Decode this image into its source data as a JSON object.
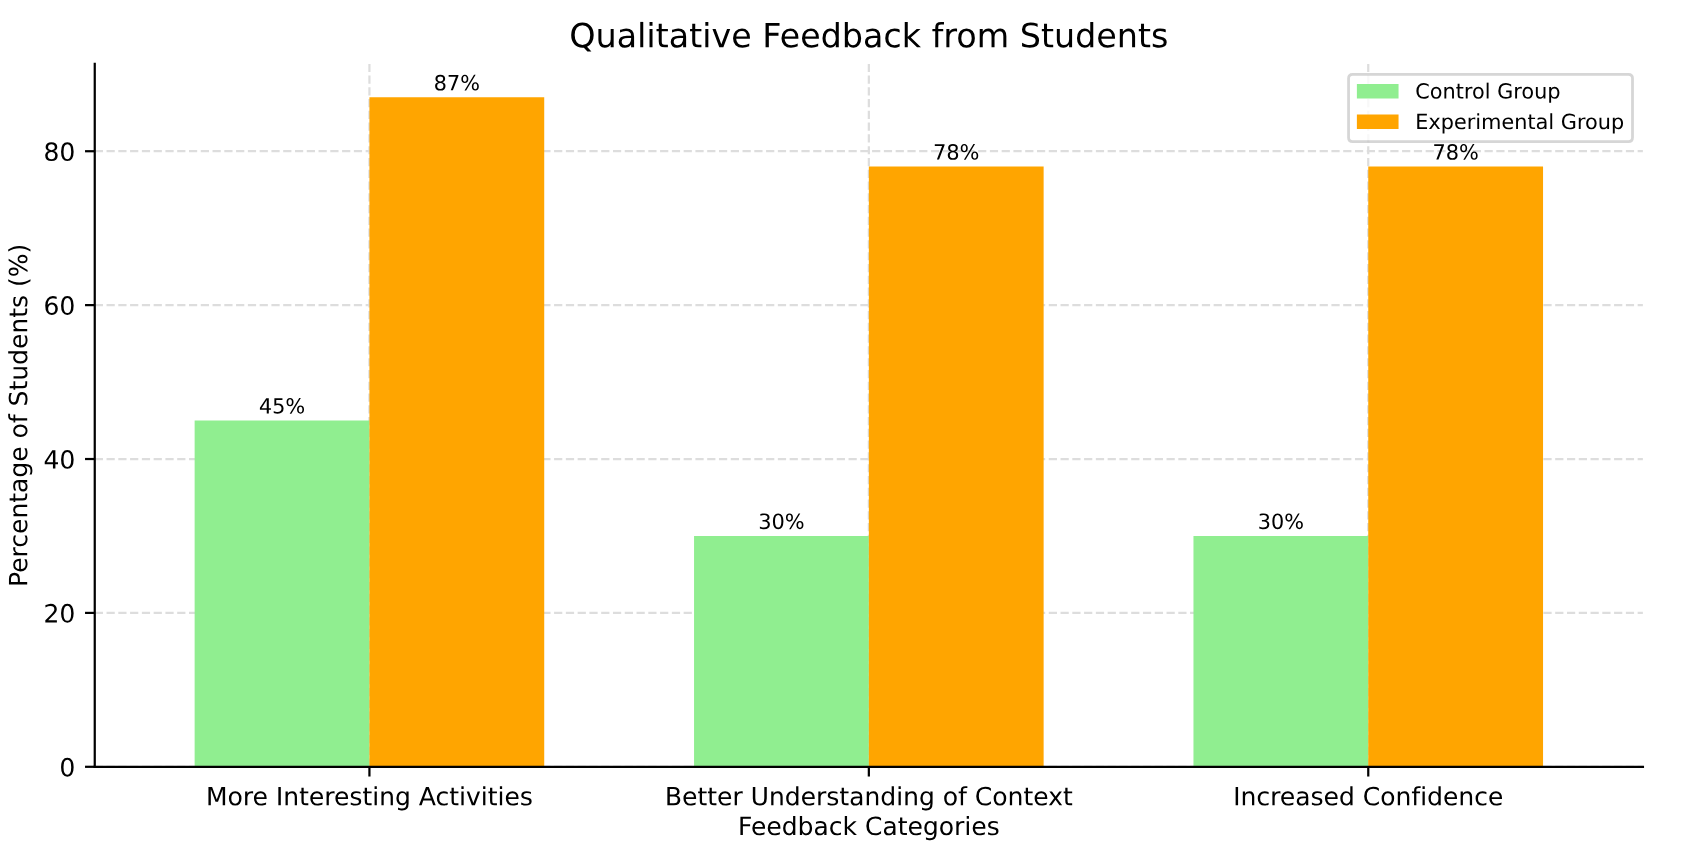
{
  "chart_data": {
    "type": "bar",
    "title": "Qualitative Feedback from Students",
    "xlabel": "Feedback Categories",
    "ylabel": "Percentage of Students (%)",
    "categories": [
      "More Interesting Activities",
      "Better Understanding of Context",
      "Increased Confidence"
    ],
    "series": [
      {
        "name": "Control Group",
        "color": "#90ee90",
        "values": [
          45,
          30,
          30
        ],
        "value_labels": [
          "45%",
          "30%",
          "30%"
        ]
      },
      {
        "name": "Experimental Group",
        "color": "#ffa500",
        "values": [
          87,
          78,
          78
        ],
        "value_labels": [
          "87%",
          "78%",
          "78%"
        ]
      }
    ],
    "ylim": [
      0,
      91.35
    ],
    "yticks": [
      0,
      20,
      40,
      60,
      80
    ],
    "grid": true,
    "legend": "top right"
  }
}
